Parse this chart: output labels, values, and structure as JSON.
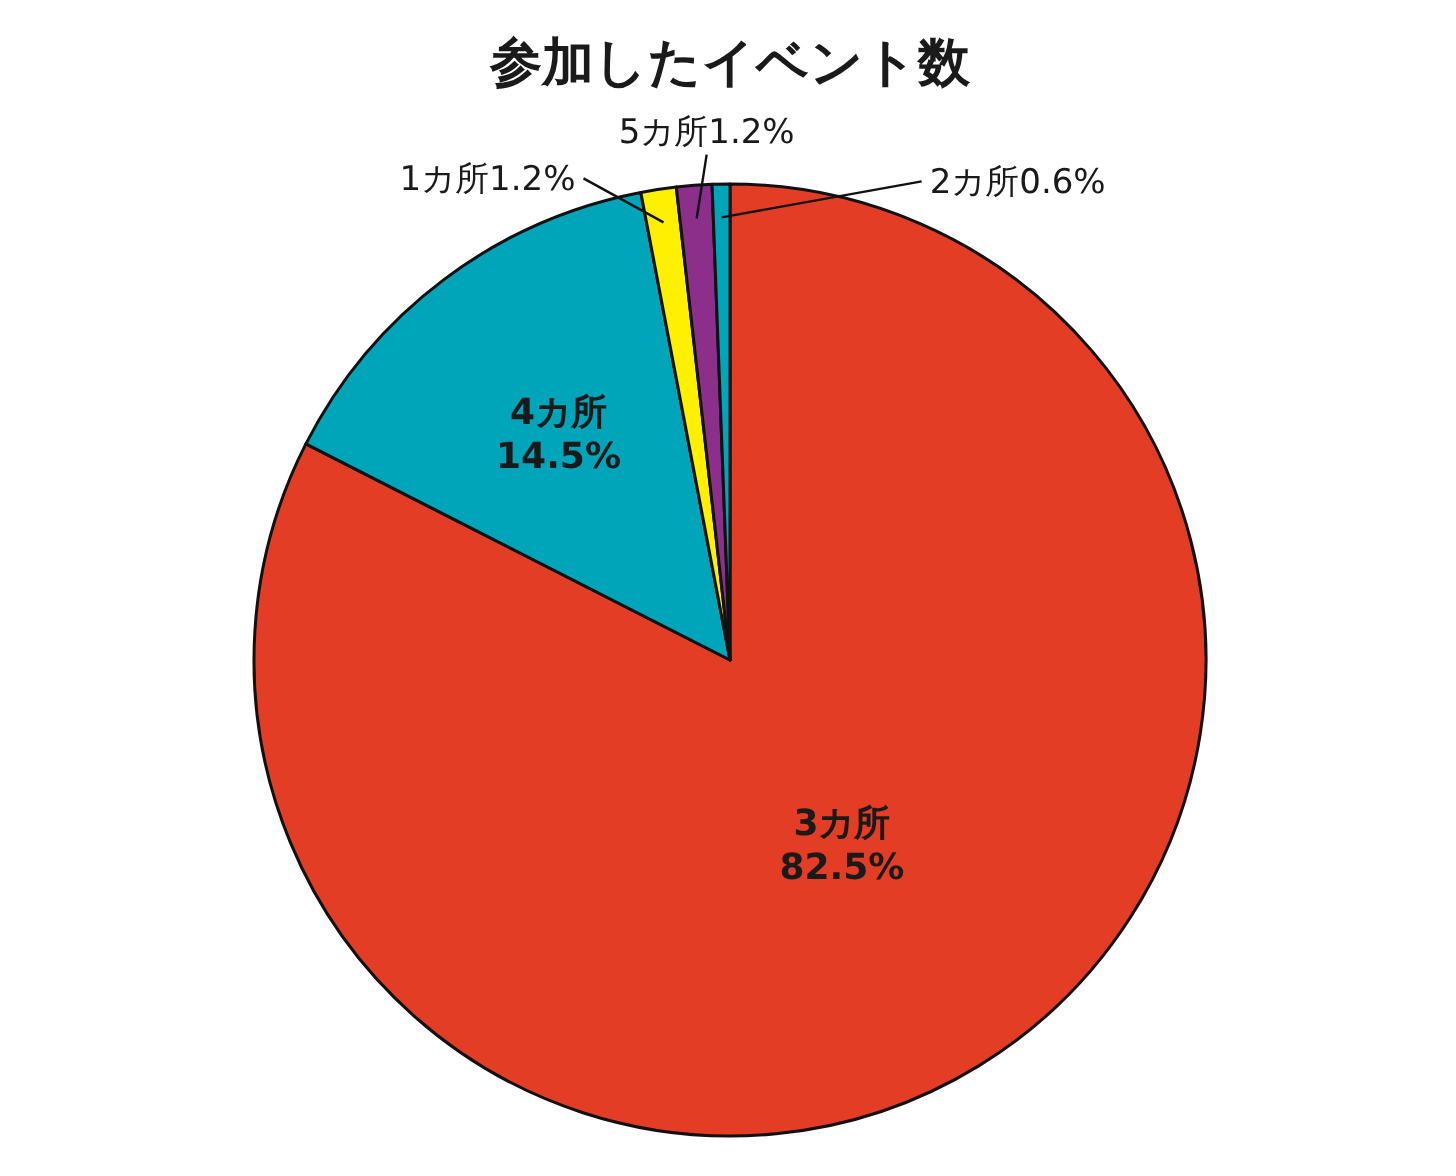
{
  "chart_data": {
    "type": "pie",
    "title": "参加したイベント数",
    "categories": [
      "3カ所",
      "4カ所",
      "1カ所",
      "5カ所",
      "2カ所"
    ],
    "values": [
      82.5,
      14.5,
      1.2,
      1.2,
      0.6
    ],
    "value_labels": [
      "82.5%",
      "14.5%",
      "1.2%",
      "1.2%",
      "0.6%"
    ],
    "colors": [
      "#e33d25",
      "#00a5b9",
      "#fff000",
      "#8b2f8a",
      "#00a5b9"
    ]
  }
}
